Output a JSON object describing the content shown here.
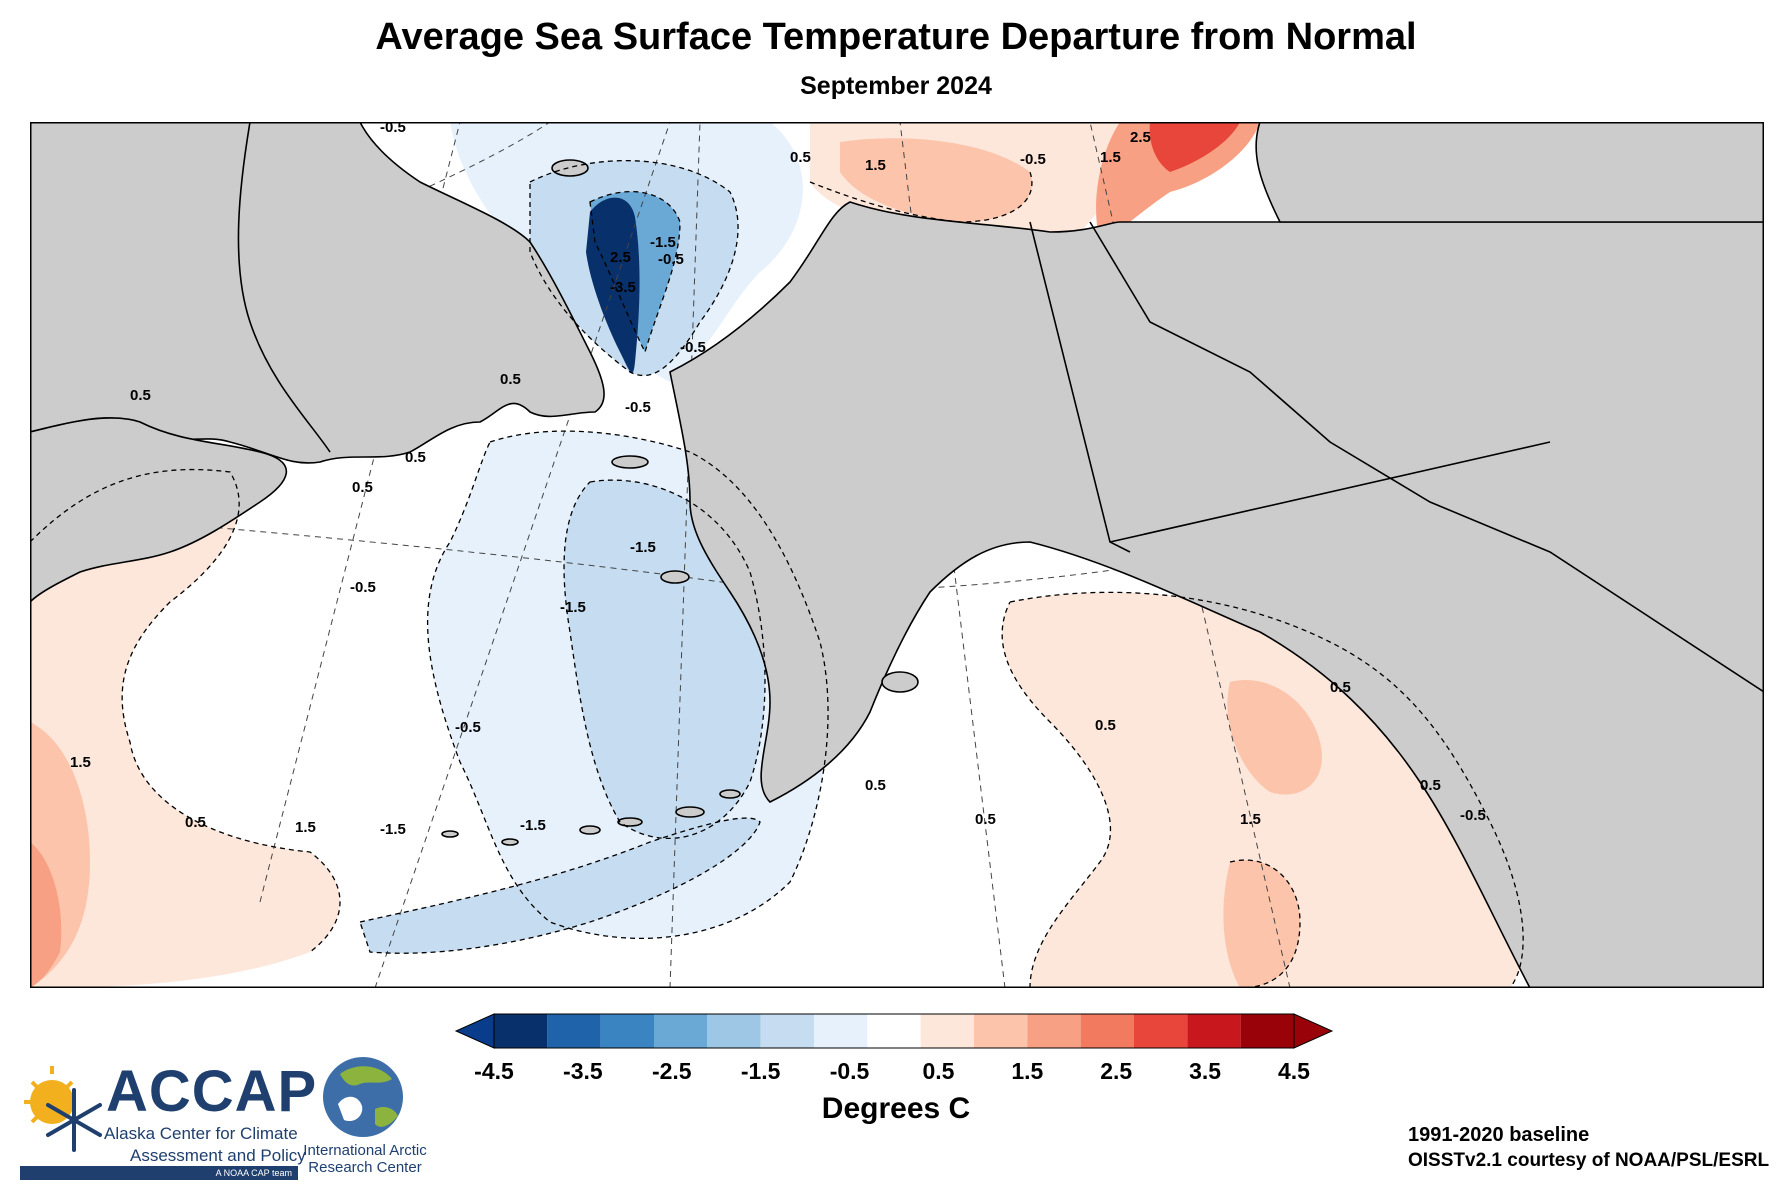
{
  "title": "Average Sea Surface Temperature Departure from Normal",
  "subtitle": "September 2024",
  "legend": {
    "units": "Degrees C",
    "tick_labels": [
      "-4.5",
      "-3.5",
      "-2.5",
      "-1.5",
      "-0.5",
      "0.5",
      "1.5",
      "2.5",
      "3.5",
      "4.5"
    ],
    "colors": [
      "#08306b",
      "#1f64aa",
      "#3a84c2",
      "#6aa8d6",
      "#9dc7e4",
      "#c6dcf0",
      "#e6f1fb",
      "#ffffff",
      "#fde6da",
      "#fbc4ab",
      "#f7a083",
      "#f27a5e",
      "#e8463a",
      "#c8181e",
      "#990208"
    ],
    "under_color": "#0a3c8c",
    "over_color": "#990208"
  },
  "map": {
    "land_color": "#cccccc",
    "contour_labels": [
      "-0.5",
      "1.5",
      "-0.5",
      "1.5",
      "2.5",
      "0.5",
      "-0.5",
      "2.5",
      "-1.5",
      "-3.5",
      "-0.5",
      "0.5",
      "0.5",
      "0.5",
      "0.5",
      "-0.5",
      "-1.5",
      "-1.5",
      "-0.5",
      "0.5",
      "1.5",
      "1.5",
      "-1.5",
      "-1.5",
      "-0.5",
      "0.5",
      "0.5",
      "0.5",
      "1.5",
      "0.5",
      "-0.5",
      "0.5"
    ]
  },
  "credits": {
    "baseline": "1991-2020 baseline",
    "source": "OISSTv2.1 courtesy of NOAA/PSL/ESRL"
  },
  "logos": {
    "accap_name": "ACCAP",
    "accap_line1": "Alaska Center for Climate",
    "accap_line2": "Assessment and Policy",
    "accap_tag": "A NOAA CAP team",
    "iarc_line1": "International Arctic",
    "iarc_line2": "Research Center"
  }
}
